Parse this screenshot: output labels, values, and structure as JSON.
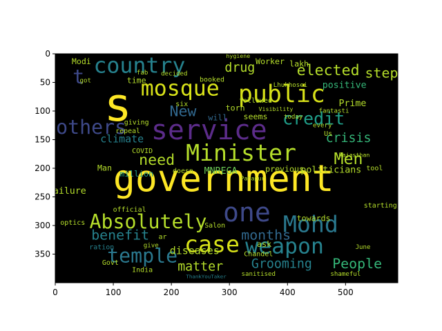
{
  "chart_data": {
    "type": "wordcloud",
    "image_extent": {
      "x": [
        0,
        590
      ],
      "y": [
        0,
        400
      ]
    },
    "x_ticks": [
      0,
      100,
      200,
      300,
      400,
      500
    ],
    "y_ticks": [
      0,
      50,
      100,
      150,
      200,
      250,
      300,
      350
    ],
    "background": "#000000",
    "palette": [
      "#fde725",
      "#b5de2b",
      "#6ece58",
      "#35b779",
      "#1f9e89",
      "#26828e",
      "#31688e",
      "#3e4989",
      "#482878",
      "#440154"
    ],
    "words": [
      {
        "text": "government",
        "x": 290,
        "y": 222,
        "size": 64,
        "color": "#fde725"
      },
      {
        "text": "service",
        "x": 265,
        "y": 137,
        "size": 48,
        "color": "#5c2c8a"
      },
      {
        "text": "s",
        "x": 108,
        "y": 95,
        "size": 80,
        "color": "#fde725"
      },
      {
        "text": "country",
        "x": 145,
        "y": 22,
        "size": 38,
        "color": "#26828e"
      },
      {
        "text": "mosque",
        "x": 215,
        "y": 62,
        "size": 38,
        "color": "#d8e219"
      },
      {
        "text": "public",
        "x": 390,
        "y": 72,
        "size": 42,
        "color": "#d8e219"
      },
      {
        "text": "Minister",
        "x": 320,
        "y": 175,
        "size": 40,
        "color": "#b5de2b"
      },
      {
        "text": "Mohd",
        "x": 440,
        "y": 300,
        "size": 40,
        "color": "#2a788e"
      },
      {
        "text": "one",
        "x": 330,
        "y": 280,
        "size": 46,
        "color": "#3e4989"
      },
      {
        "text": "case",
        "x": 270,
        "y": 335,
        "size": 40,
        "color": "#d8e219"
      },
      {
        "text": "weapon",
        "x": 395,
        "y": 338,
        "size": 38,
        "color": "#26828e"
      },
      {
        "text": "temple",
        "x": 150,
        "y": 355,
        "size": 34,
        "color": "#2a788e"
      },
      {
        "text": "Absolutely",
        "x": 160,
        "y": 295,
        "size": 34,
        "color": "#b5de2b"
      },
      {
        "text": "credit",
        "x": 445,
        "y": 115,
        "size": 30,
        "color": "#1f9e89"
      },
      {
        "text": "elected",
        "x": 470,
        "y": 30,
        "size": 26,
        "color": "#b5de2b"
      },
      {
        "text": "Men",
        "x": 505,
        "y": 185,
        "size": 28,
        "color": "#b5de2b"
      },
      {
        "text": "crisis",
        "x": 505,
        "y": 148,
        "size": 22,
        "color": "#35b779"
      },
      {
        "text": "People",
        "x": 520,
        "y": 368,
        "size": 24,
        "color": "#35b779"
      },
      {
        "text": "Grooming",
        "x": 390,
        "y": 368,
        "size": 22,
        "color": "#26828e"
      },
      {
        "text": "matter",
        "x": 250,
        "y": 373,
        "size": 22,
        "color": "#b5de2b"
      },
      {
        "text": "months",
        "x": 363,
        "y": 318,
        "size": 24,
        "color": "#31688e"
      },
      {
        "text": "benefit",
        "x": 112,
        "y": 318,
        "size": 24,
        "color": "#26828e"
      },
      {
        "text": "diseases",
        "x": 240,
        "y": 345,
        "size": 18,
        "color": "#b5de2b"
      },
      {
        "text": "need",
        "x": 175,
        "y": 187,
        "size": 26,
        "color": "#b5de2b"
      },
      {
        "text": "drug",
        "x": 318,
        "y": 25,
        "size": 22,
        "color": "#b5de2b"
      },
      {
        "text": "New",
        "x": 220,
        "y": 102,
        "size": 26,
        "color": "#31688e"
      },
      {
        "text": "others",
        "x": 62,
        "y": 130,
        "size": 34,
        "color": "#3e4989"
      },
      {
        "text": "t",
        "x": 40,
        "y": 42,
        "size": 34,
        "color": "#3e4989"
      },
      {
        "text": "step",
        "x": 562,
        "y": 35,
        "size": 24,
        "color": "#b5de2b"
      },
      {
        "text": "positive",
        "x": 498,
        "y": 55,
        "size": 16,
        "color": "#35b779"
      },
      {
        "text": "Prime",
        "x": 512,
        "y": 87,
        "size": 16,
        "color": "#b5de2b"
      },
      {
        "text": "Worker",
        "x": 370,
        "y": 14,
        "size": 14,
        "color": "#b5de2b"
      },
      {
        "text": "Modi",
        "x": 45,
        "y": 14,
        "size": 14,
        "color": "#b5de2b"
      },
      {
        "text": "climate",
        "x": 115,
        "y": 150,
        "size": 18,
        "color": "#26828e"
      },
      {
        "text": "MNREGA",
        "x": 285,
        "y": 205,
        "size": 16,
        "color": "#6ece58"
      },
      {
        "text": "politicians",
        "x": 475,
        "y": 203,
        "size": 16,
        "color": "#b5de2b"
      },
      {
        "text": "previous",
        "x": 395,
        "y": 202,
        "size": 14,
        "color": "#b5de2b"
      },
      {
        "text": "failure",
        "x": 20,
        "y": 240,
        "size": 16,
        "color": "#b5de2b"
      },
      {
        "text": "million",
        "x": 140,
        "y": 210,
        "size": 14,
        "color": "#1f9e89"
      },
      {
        "text": "Man",
        "x": 85,
        "y": 200,
        "size": 14,
        "color": "#b5de2b"
      },
      {
        "text": "towards",
        "x": 445,
        "y": 288,
        "size": 14,
        "color": "#b5de2b"
      },
      {
        "text": "ask",
        "x": 360,
        "y": 333,
        "size": 14,
        "color": "#b5de2b"
      },
      {
        "text": "Chandel",
        "x": 350,
        "y": 350,
        "size": 12,
        "color": "#b5de2b"
      },
      {
        "text": "India",
        "x": 150,
        "y": 378,
        "size": 12,
        "color": "#b5de2b"
      },
      {
        "text": "Govt",
        "x": 95,
        "y": 365,
        "size": 12,
        "color": "#b5de2b"
      },
      {
        "text": "optics",
        "x": 30,
        "y": 295,
        "size": 12,
        "color": "#b5de2b"
      },
      {
        "text": "official",
        "x": 128,
        "y": 272,
        "size": 12,
        "color": "#b5de2b"
      },
      {
        "text": "ration",
        "x": 80,
        "y": 338,
        "size": 12,
        "color": "#26828e"
      },
      {
        "text": "torn",
        "x": 310,
        "y": 95,
        "size": 14,
        "color": "#b5de2b"
      },
      {
        "text": "followed",
        "x": 345,
        "y": 82,
        "size": 12,
        "color": "#b5de2b"
      },
      {
        "text": "seems",
        "x": 345,
        "y": 110,
        "size": 14,
        "color": "#b5de2b"
      },
      {
        "text": "will",
        "x": 280,
        "y": 112,
        "size": 14,
        "color": "#31688e"
      },
      {
        "text": "time",
        "x": 140,
        "y": 47,
        "size": 14,
        "color": "#b5de2b"
      },
      {
        "text": "booked",
        "x": 270,
        "y": 45,
        "size": 12,
        "color": "#b5de2b"
      },
      {
        "text": "giving",
        "x": 140,
        "y": 120,
        "size": 12,
        "color": "#b5de2b"
      },
      {
        "text": "repeal",
        "x": 125,
        "y": 135,
        "size": 12,
        "color": "#b5de2b"
      },
      {
        "text": "COVID",
        "x": 150,
        "y": 170,
        "size": 12,
        "color": "#b5de2b"
      },
      {
        "text": "six",
        "x": 218,
        "y": 88,
        "size": 12,
        "color": "#b5de2b"
      },
      {
        "text": "lakh",
        "x": 420,
        "y": 18,
        "size": 14,
        "color": "#b5de2b"
      },
      {
        "text": "Lhukhosei",
        "x": 405,
        "y": 55,
        "size": 11,
        "color": "#b5de2b"
      },
      {
        "text": "Us",
        "x": 470,
        "y": 140,
        "size": 12,
        "color": "#b5de2b"
      },
      {
        "text": "every",
        "x": 460,
        "y": 125,
        "size": 11,
        "color": "#b5de2b"
      },
      {
        "text": "today",
        "x": 410,
        "y": 110,
        "size": 11,
        "color": "#b5de2b"
      },
      {
        "text": "Visibility",
        "x": 380,
        "y": 97,
        "size": 10,
        "color": "#b5de2b"
      },
      {
        "text": "fantasti",
        "x": 480,
        "y": 100,
        "size": 11,
        "color": "#b5de2b"
      },
      {
        "text": "tool",
        "x": 550,
        "y": 200,
        "size": 12,
        "color": "#b5de2b"
      },
      {
        "text": "starting",
        "x": 560,
        "y": 265,
        "size": 12,
        "color": "#b5de2b"
      },
      {
        "text": "June",
        "x": 530,
        "y": 338,
        "size": 11,
        "color": "#b5de2b"
      },
      {
        "text": "shameful",
        "x": 500,
        "y": 385,
        "size": 11,
        "color": "#b5de2b"
      },
      {
        "text": "sanitised",
        "x": 350,
        "y": 385,
        "size": 11,
        "color": "#b5de2b"
      },
      {
        "text": "ThankYouTaker",
        "x": 260,
        "y": 390,
        "size": 9,
        "color": "#26828e"
      },
      {
        "text": "Salon",
        "x": 275,
        "y": 300,
        "size": 12,
        "color": "#b5de2b"
      },
      {
        "text": "doesn",
        "x": 220,
        "y": 205,
        "size": 12,
        "color": "#b5de2b"
      },
      {
        "text": "ar",
        "x": 185,
        "y": 320,
        "size": 12,
        "color": "#b5de2b"
      },
      {
        "text": "give",
        "x": 165,
        "y": 335,
        "size": 11,
        "color": "#b5de2b"
      },
      {
        "text": "Pahapur",
        "x": 340,
        "y": 218,
        "size": 10,
        "color": "#b5de2b"
      },
      {
        "text": "Rajasthan",
        "x": 515,
        "y": 177,
        "size": 10,
        "color": "#b5de2b"
      },
      {
        "text": "got",
        "x": 52,
        "y": 47,
        "size": 11,
        "color": "#b5de2b"
      },
      {
        "text": "fab",
        "x": 150,
        "y": 33,
        "size": 11,
        "color": "#b5de2b"
      },
      {
        "text": "decided",
        "x": 205,
        "y": 35,
        "size": 11,
        "color": "#b5de2b"
      },
      {
        "text": "hygiene",
        "x": 315,
        "y": 4,
        "size": 10,
        "color": "#b5de2b"
      }
    ]
  }
}
